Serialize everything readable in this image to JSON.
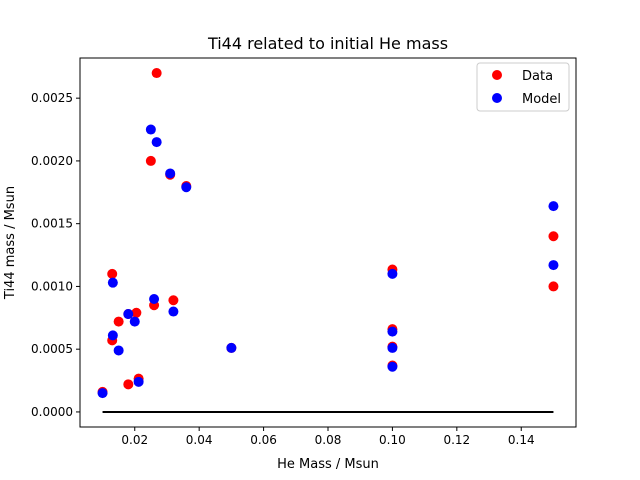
{
  "chart_data": {
    "type": "scatter",
    "title": "Ti44 related to initial He mass",
    "xlabel": "He Mass / Msun",
    "ylabel": "Ti44 mass / Msun",
    "xlim": [
      0.003,
      0.157
    ],
    "ylim": [
      -0.00012,
      0.00282
    ],
    "xticks": [
      0.02,
      0.04,
      0.06,
      0.08,
      0.1,
      0.12,
      0.14
    ],
    "xtick_labels": [
      "0.02",
      "0.04",
      "0.06",
      "0.08",
      "0.10",
      "0.12",
      "0.14"
    ],
    "yticks": [
      0.0,
      0.0005,
      0.001,
      0.0015,
      0.002,
      0.0025
    ],
    "ytick_labels": [
      "0.0000",
      "0.0005",
      "0.0010",
      "0.0015",
      "0.0020",
      "0.0025"
    ],
    "grid": false,
    "legend": "top-right",
    "series": [
      {
        "name": "Data",
        "color": "#ff0000",
        "points": [
          {
            "x": 0.01,
            "y": 0.00016
          },
          {
            "x": 0.013,
            "y": 0.0011
          },
          {
            "x": 0.013,
            "y": 0.00057
          },
          {
            "x": 0.015,
            "y": 0.00072
          },
          {
            "x": 0.018,
            "y": 0.00022
          },
          {
            "x": 0.018,
            "y": 0.00078
          },
          {
            "x": 0.0205,
            "y": 0.00079
          },
          {
            "x": 0.0212,
            "y": 0.000265
          },
          {
            "x": 0.025,
            "y": 0.002
          },
          {
            "x": 0.026,
            "y": 0.00085
          },
          {
            "x": 0.0268,
            "y": 0.0027
          },
          {
            "x": 0.031,
            "y": 0.00189
          },
          {
            "x": 0.032,
            "y": 0.00089
          },
          {
            "x": 0.036,
            "y": 0.0018
          },
          {
            "x": 0.05,
            "y": 0.00051
          },
          {
            "x": 0.1,
            "y": 0.001135
          },
          {
            "x": 0.1,
            "y": 0.00066
          },
          {
            "x": 0.1,
            "y": 0.00052
          },
          {
            "x": 0.1,
            "y": 0.00037
          },
          {
            "x": 0.15,
            "y": 0.0014
          },
          {
            "x": 0.15,
            "y": 0.001
          }
        ]
      },
      {
        "name": "Model",
        "color": "#0000ff",
        "points": [
          {
            "x": 0.01,
            "y": 0.00015
          },
          {
            "x": 0.0132,
            "y": 0.00103
          },
          {
            "x": 0.0132,
            "y": 0.00061
          },
          {
            "x": 0.015,
            "y": 0.00049
          },
          {
            "x": 0.018,
            "y": 0.00078
          },
          {
            "x": 0.02,
            "y": 0.00072
          },
          {
            "x": 0.0212,
            "y": 0.00024
          },
          {
            "x": 0.025,
            "y": 0.00225
          },
          {
            "x": 0.026,
            "y": 0.0009
          },
          {
            "x": 0.0268,
            "y": 0.00215
          },
          {
            "x": 0.031,
            "y": 0.0019
          },
          {
            "x": 0.032,
            "y": 0.0008
          },
          {
            "x": 0.036,
            "y": 0.00179
          },
          {
            "x": 0.05,
            "y": 0.00051
          },
          {
            "x": 0.1,
            "y": 0.0011
          },
          {
            "x": 0.1,
            "y": 0.00064
          },
          {
            "x": 0.1,
            "y": 0.00051
          },
          {
            "x": 0.1,
            "y": 0.00036
          },
          {
            "x": 0.15,
            "y": 0.00164
          },
          {
            "x": 0.15,
            "y": 0.00117
          }
        ]
      }
    ],
    "baseline": {
      "color": "#000000",
      "x": [
        0.01,
        0.15
      ],
      "y": 0.0
    }
  }
}
